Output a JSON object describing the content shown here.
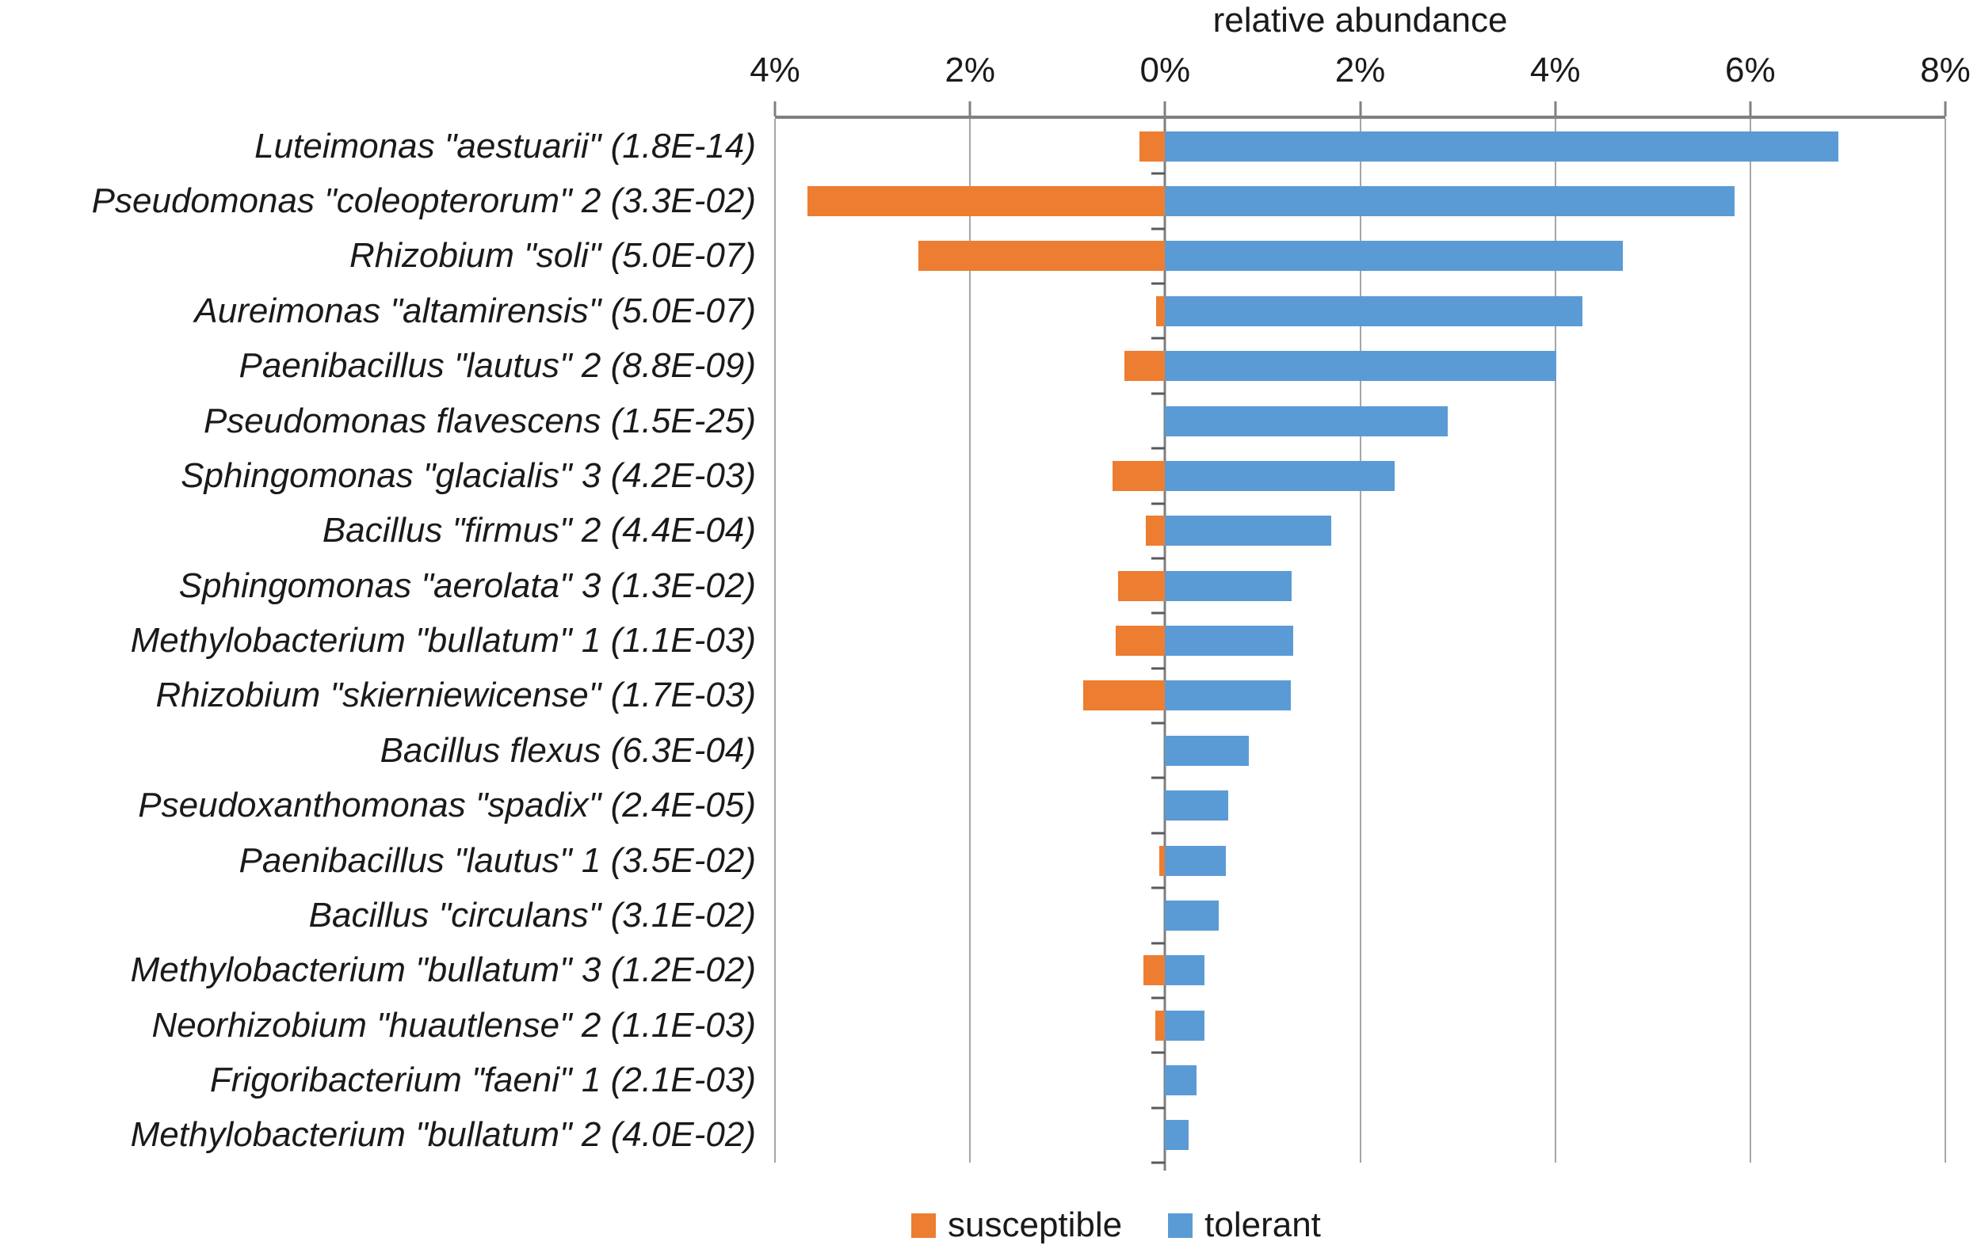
{
  "chart_data": {
    "type": "bar",
    "orientation": "horizontal_diverging",
    "title": "relative abundance",
    "x_axis": {
      "position": "top",
      "min": -4,
      "max": 8,
      "tick_values": [
        -4,
        -2,
        0,
        2,
        4,
        6,
        8
      ],
      "tick_labels": [
        "4%",
        "2%",
        "0%",
        "2%",
        "4%",
        "6%",
        "8%"
      ],
      "grid": true
    },
    "value_unit": "percent relative abundance",
    "legend": {
      "position": "bottom",
      "items": [
        {
          "name": "susceptible",
          "color": "#ED7D31"
        },
        {
          "name": "tolerant",
          "color": "#5B9BD5"
        }
      ]
    },
    "colors": {
      "susceptible": "#ED7D31",
      "tolerant": "#5B9BD5",
      "axis_line": "#808080",
      "gridline": "#A6A6A6",
      "zero_line": "#7F7F7F",
      "tick": "#595959",
      "text": "#1A1A1A"
    },
    "rows": [
      {
        "label": "Luteimonas \"aestuarii\" (1.8E-14)",
        "susceptible": 0.26,
        "tolerant": 6.9
      },
      {
        "label": "Pseudomonas \"coleopterorum\" 2 (3.3E-02)",
        "susceptible": 3.67,
        "tolerant": 5.84
      },
      {
        "label": "Rhizobium \"soli\" (5.0E-07)",
        "susceptible": 2.53,
        "tolerant": 4.69
      },
      {
        "label": "Aureimonas \"altamirensis\" (5.0E-07)",
        "susceptible": 0.09,
        "tolerant": 4.28
      },
      {
        "label": "Paenibacillus \"lautus\" 2 (8.8E-09)",
        "susceptible": 0.42,
        "tolerant": 4.01
      },
      {
        "label": "Pseudomonas flavescens (1.5E-25)",
        "susceptible": 0.0,
        "tolerant": 2.9
      },
      {
        "label": "Sphingomonas \"glacialis\" 3 (4.2E-03)",
        "susceptible": 0.54,
        "tolerant": 2.35
      },
      {
        "label": "Bacillus \"firmus\" 2 (4.4E-04)",
        "susceptible": 0.2,
        "tolerant": 1.7
      },
      {
        "label": "Sphingomonas \"aerolata\" 3 (1.3E-02)",
        "susceptible": 0.48,
        "tolerant": 1.3
      },
      {
        "label": "Methylobacterium \"bullatum\" 1 (1.1E-03)",
        "susceptible": 0.51,
        "tolerant": 1.31
      },
      {
        "label": "Rhizobium \"skierniewicense\" (1.7E-03)",
        "susceptible": 0.84,
        "tolerant": 1.29
      },
      {
        "label": "Bacillus flexus (6.3E-04)",
        "susceptible": 0.0,
        "tolerant": 0.86
      },
      {
        "label": "Pseudoxanthomonas \"spadix\" (2.4E-05)",
        "susceptible": 0.0,
        "tolerant": 0.65
      },
      {
        "label": "Paenibacillus \"lautus\" 1 (3.5E-02)",
        "susceptible": 0.06,
        "tolerant": 0.62
      },
      {
        "label": "Bacillus \"circulans\" (3.1E-02)",
        "susceptible": 0.0,
        "tolerant": 0.55
      },
      {
        "label": "Methylobacterium \"bullatum\" 3 (1.2E-02)",
        "susceptible": 0.22,
        "tolerant": 0.4
      },
      {
        "label": "Neorhizobium \"huautlense\" 2 (1.1E-03)",
        "susceptible": 0.1,
        "tolerant": 0.4
      },
      {
        "label": "Frigoribacterium \"faeni\" 1 (2.1E-03)",
        "susceptible": 0.0,
        "tolerant": 0.32
      },
      {
        "label": "Methylobacterium \"bullatum\" 2 (4.0E-02)",
        "susceptible": 0.0,
        "tolerant": 0.24
      }
    ]
  }
}
